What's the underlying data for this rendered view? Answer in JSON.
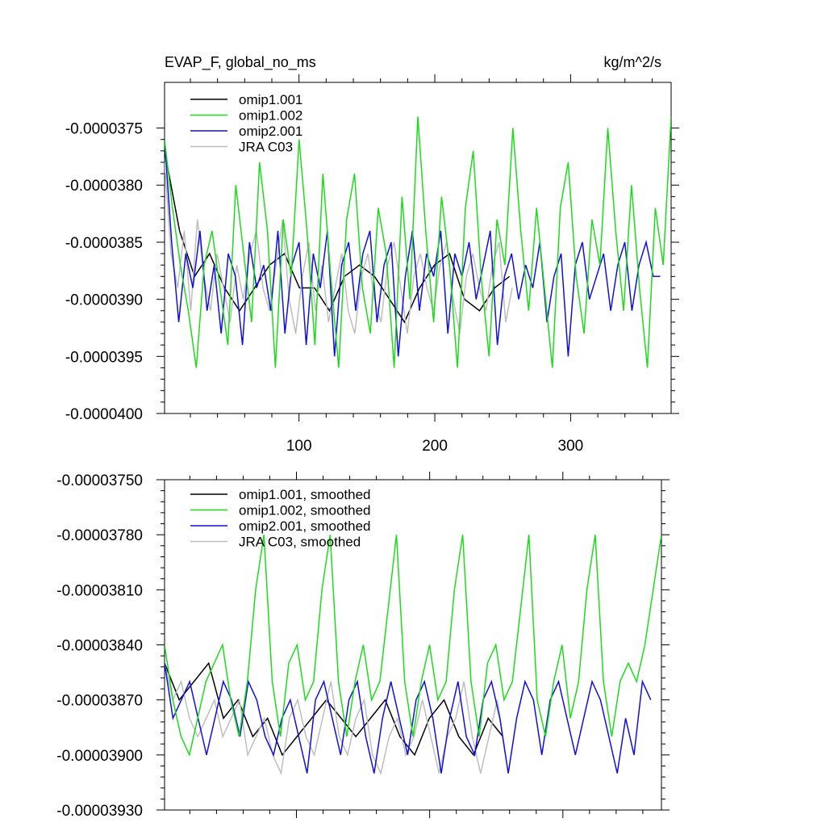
{
  "chart_data": [
    {
      "type": "line",
      "title": "EVAP_F, global_no_ms",
      "units": "kg/m^2/s",
      "xlabel": "",
      "ylabel": "",
      "xlim": [
        1,
        374
      ],
      "ylim": [
        -4e-05,
        -3.71e-05
      ],
      "x_ticks": [
        100,
        200,
        300
      ],
      "x_tick_labels": [
        "100",
        "200",
        "300"
      ],
      "y_ticks": [
        -3.75e-05,
        -3.8e-05,
        -3.85e-05,
        -3.9e-05,
        -3.95e-05,
        -4e-05
      ],
      "y_tick_labels": [
        "-0.0000375",
        "-0.0000380",
        "-0.0000385",
        "-0.0000390",
        "-0.0000395",
        "-0.0000400"
      ],
      "legend_position": "top-left",
      "series": [
        {
          "name": "omip1.001",
          "color": "#000000",
          "values": [
            -3.77e-05,
            -3.84e-05,
            -3.88e-05,
            -3.86e-05,
            -3.89e-05,
            -3.91e-05,
            -3.89e-05,
            -3.87e-05,
            -3.86e-05,
            -3.89e-05,
            -3.89e-05,
            -3.91e-05,
            -3.88e-05,
            -3.87e-05,
            -3.88e-05,
            -3.9e-05,
            -3.92e-05,
            -3.89e-05,
            -3.87e-05,
            -3.86e-05,
            -3.9e-05,
            -3.91e-05,
            -3.89e-05,
            -3.88e-05
          ]
        },
        {
          "name": "omip1.002",
          "color": "#1bdc1b",
          "values": [
            -3.76e-05,
            -3.82e-05,
            -3.87e-05,
            -3.91e-05,
            -3.96e-05,
            -3.87e-05,
            -3.84e-05,
            -3.89e-05,
            -3.94e-05,
            -3.8e-05,
            -3.86e-05,
            -3.92e-05,
            -3.78e-05,
            -3.84e-05,
            -3.96e-05,
            -3.83e-05,
            -3.88e-05,
            -3.76e-05,
            -3.84e-05,
            -3.94e-05,
            -3.79e-05,
            -3.88e-05,
            -3.96e-05,
            -3.83e-05,
            -3.79e-05,
            -3.89e-05,
            -3.93e-05,
            -3.82e-05,
            -3.86e-05,
            -3.96e-05,
            -3.81e-05,
            -3.9e-05,
            -3.74e-05,
            -3.84e-05,
            -3.92e-05,
            -3.81e-05,
            -3.87e-05,
            -3.96e-05,
            -3.82e-05,
            -3.77e-05,
            -3.88e-05,
            -3.95e-05,
            -3.83e-05,
            -3.87e-05,
            -3.75e-05,
            -3.84e-05,
            -3.91e-05,
            -3.82e-05,
            -3.89e-05,
            -3.96e-05,
            -3.82e-05,
            -3.78e-05,
            -3.88e-05,
            -3.93e-05,
            -3.83e-05,
            -3.87e-05,
            -3.75e-05,
            -3.84e-05,
            -3.91e-05,
            -3.8e-05,
            -3.89e-05,
            -3.96e-05,
            -3.82e-05,
            -3.87e-05,
            -3.74e-05
          ]
        },
        {
          "name": "omip2.001",
          "color": "#1010dc",
          "values": [
            -3.76e-05,
            -3.85e-05,
            -3.92e-05,
            -3.86e-05,
            -3.89e-05,
            -3.84e-05,
            -3.91e-05,
            -3.87e-05,
            -3.93e-05,
            -3.86e-05,
            -3.88e-05,
            -3.94e-05,
            -3.85e-05,
            -3.89e-05,
            -3.87e-05,
            -3.91e-05,
            -3.84e-05,
            -3.93e-05,
            -3.87e-05,
            -3.85e-05,
            -3.94e-05,
            -3.86e-05,
            -3.89e-05,
            -3.84e-05,
            -3.95e-05,
            -3.87e-05,
            -3.85e-05,
            -3.91e-05,
            -3.86e-05,
            -3.84e-05,
            -3.92e-05,
            -3.87e-05,
            -3.85e-05,
            -3.95e-05,
            -3.88e-05,
            -3.84e-05,
            -3.91e-05,
            -3.86e-05,
            -3.88e-05,
            -3.84e-05,
            -3.93e-05,
            -3.86e-05,
            -3.88e-05,
            -3.85e-05,
            -3.9e-05,
            -3.87e-05,
            -3.84e-05,
            -3.94e-05,
            -3.88e-05,
            -3.86e-05,
            -3.9e-05,
            -3.87e-05,
            -3.89e-05,
            -3.85e-05,
            -3.92e-05,
            -3.88e-05,
            -3.86e-05,
            -3.95e-05,
            -3.87e-05,
            -3.85e-05,
            -3.9e-05,
            -3.88e-05,
            -3.86e-05,
            -3.91e-05,
            -3.87e-05,
            -3.85e-05,
            -3.91e-05,
            -3.87e-05,
            -3.85e-05,
            -3.88e-05,
            -3.88e-05
          ]
        },
        {
          "name": "JRA C03",
          "color": "#bebebe",
          "values": [
            -3.78e-05,
            -3.86e-05,
            -3.89e-05,
            -3.84e-05,
            -3.91e-05,
            -3.83e-05,
            -3.88e-05,
            -3.91e-05,
            -3.86e-05,
            -3.89e-05,
            -3.92e-05,
            -3.87e-05,
            -3.9e-05,
            -3.86e-05,
            -3.84e-05,
            -3.89e-05,
            -3.91e-05,
            -3.87e-05,
            -3.83e-05,
            -3.9e-05,
            -3.93e-05,
            -3.88e-05,
            -3.85e-05,
            -3.91e-05,
            -3.87e-05,
            -3.92e-05,
            -3.89e-05,
            -3.86e-05,
            -3.91e-05,
            -3.93e-05,
            -3.88e-05,
            -3.86e-05,
            -3.9e-05,
            -3.92e-05,
            -3.87e-05,
            -3.85e-05,
            -3.89e-05,
            -3.93e-05,
            -3.88e-05,
            -3.86e-05,
            -3.89e-05,
            -3.91e-05,
            -3.87e-05,
            -3.85e-05,
            -3.9e-05,
            -3.93e-05,
            -3.88e-05,
            -3.86e-05,
            -3.89e-05,
            -3.91e-05,
            -3.87e-05,
            -3.85e-05,
            -3.92e-05,
            -3.89e-05
          ]
        }
      ],
      "series_x_max": [
        255,
        374,
        366,
        257
      ]
    },
    {
      "type": "line",
      "title": "",
      "xlabel": "",
      "ylabel": "",
      "xlim": [
        1,
        374
      ],
      "ylim": [
        -3.93e-05,
        -3.75e-05
      ],
      "x_ticks": [
        100,
        200,
        300
      ],
      "y_ticks": [
        -3.75e-05,
        -3.78e-05,
        -3.81e-05,
        -3.84e-05,
        -3.87e-05,
        -3.9e-05,
        -3.93e-05
      ],
      "y_tick_labels": [
        "-0.00003750",
        "-0.00003780",
        "-0.00003810",
        "-0.00003840",
        "-0.00003870",
        "-0.00003900",
        "-0.00003930"
      ],
      "legend_position": "top-left",
      "series": [
        {
          "name": "omip1.001, smoothed",
          "color": "#000000",
          "values": [
            -3.85e-05,
            -3.87e-05,
            -3.86e-05,
            -3.85e-05,
            -3.88e-05,
            -3.87e-05,
            -3.89e-05,
            -3.88e-05,
            -3.9e-05,
            -3.89e-05,
            -3.88e-05,
            -3.87e-05,
            -3.88e-05,
            -3.89e-05,
            -3.88e-05,
            -3.87e-05,
            -3.89e-05,
            -3.9e-05,
            -3.88e-05,
            -3.87e-05,
            -3.89e-05,
            -3.9e-05,
            -3.88e-05,
            -3.89e-05
          ]
        },
        {
          "name": "omip1.002, smoothed",
          "color": "#1bdc1b",
          "values": [
            -3.84e-05,
            -3.87e-05,
            -3.89e-05,
            -3.9e-05,
            -3.88e-05,
            -3.86e-05,
            -3.85e-05,
            -3.84e-05,
            -3.87e-05,
            -3.89e-05,
            -3.86e-05,
            -3.81e-05,
            -3.78e-05,
            -3.86e-05,
            -3.89e-05,
            -3.85e-05,
            -3.84e-05,
            -3.87e-05,
            -3.86e-05,
            -3.81e-05,
            -3.78e-05,
            -3.86e-05,
            -3.89e-05,
            -3.86e-05,
            -3.84e-05,
            -3.87e-05,
            -3.86e-05,
            -3.82e-05,
            -3.78e-05,
            -3.86e-05,
            -3.89e-05,
            -3.86e-05,
            -3.84e-05,
            -3.87e-05,
            -3.86e-05,
            -3.81e-05,
            -3.78e-05,
            -3.86e-05,
            -3.89e-05,
            -3.85e-05,
            -3.84e-05,
            -3.87e-05,
            -3.86e-05,
            -3.82e-05,
            -3.78e-05,
            -3.87e-05,
            -3.89e-05,
            -3.86e-05,
            -3.84e-05,
            -3.88e-05,
            -3.86e-05,
            -3.81e-05,
            -3.78e-05,
            -3.86e-05,
            -3.89e-05,
            -3.86e-05,
            -3.85e-05,
            -3.86e-05,
            -3.84e-05,
            -3.81e-05,
            -3.78e-05
          ]
        },
        {
          "name": "omip2.001, smoothed",
          "color": "#1010dc",
          "values": [
            -3.85e-05,
            -3.88e-05,
            -3.87e-05,
            -3.86e-05,
            -3.88e-05,
            -3.9e-05,
            -3.88e-05,
            -3.86e-05,
            -3.87e-05,
            -3.89e-05,
            -3.86e-05,
            -3.87e-05,
            -3.89e-05,
            -3.9e-05,
            -3.88e-05,
            -3.87e-05,
            -3.89e-05,
            -3.91e-05,
            -3.87e-05,
            -3.86e-05,
            -3.88e-05,
            -3.9e-05,
            -3.87e-05,
            -3.86e-05,
            -3.89e-05,
            -3.91e-05,
            -3.88e-05,
            -3.86e-05,
            -3.88e-05,
            -3.9e-05,
            -3.87e-05,
            -3.86e-05,
            -3.88e-05,
            -3.91e-05,
            -3.88e-05,
            -3.86e-05,
            -3.89e-05,
            -3.9e-05,
            -3.87e-05,
            -3.86e-05,
            -3.88e-05,
            -3.91e-05,
            -3.88e-05,
            -3.86e-05,
            -3.87e-05,
            -3.9e-05,
            -3.87e-05,
            -3.86e-05,
            -3.88e-05,
            -3.9e-05,
            -3.88e-05,
            -3.86e-05,
            -3.87e-05,
            -3.89e-05,
            -3.91e-05,
            -3.88e-05,
            -3.9e-05,
            -3.86e-05,
            -3.87e-05
          ]
        },
        {
          "name": "JRA C03, smoothed",
          "color": "#bebebe",
          "values": [
            -3.85e-05,
            -3.87e-05,
            -3.86e-05,
            -3.88e-05,
            -3.89e-05,
            -3.88e-05,
            -3.87e-05,
            -3.89e-05,
            -3.88e-05,
            -3.87e-05,
            -3.9e-05,
            -3.89e-05,
            -3.88e-05,
            -3.9e-05,
            -3.91e-05,
            -3.88e-05,
            -3.87e-05,
            -3.89e-05,
            -3.9e-05,
            -3.88e-05,
            -3.86e-05,
            -3.89e-05,
            -3.9e-05,
            -3.88e-05,
            -3.87e-05,
            -3.9e-05,
            -3.91e-05,
            -3.89e-05,
            -3.88e-05,
            -3.9e-05,
            -3.89e-05,
            -3.87e-05,
            -3.89e-05,
            -3.91e-05,
            -3.89e-05,
            -3.88e-05,
            -3.86e-05,
            -3.89e-05,
            -3.91e-05,
            -3.89e-05,
            -3.87e-05,
            -3.9e-05
          ]
        },
        {
          "placeholder": true,
          "name": "",
          "color": "#000000",
          "values": []
        }
      ],
      "series_x_max": [
        255,
        374,
        366,
        257,
        0
      ]
    }
  ]
}
